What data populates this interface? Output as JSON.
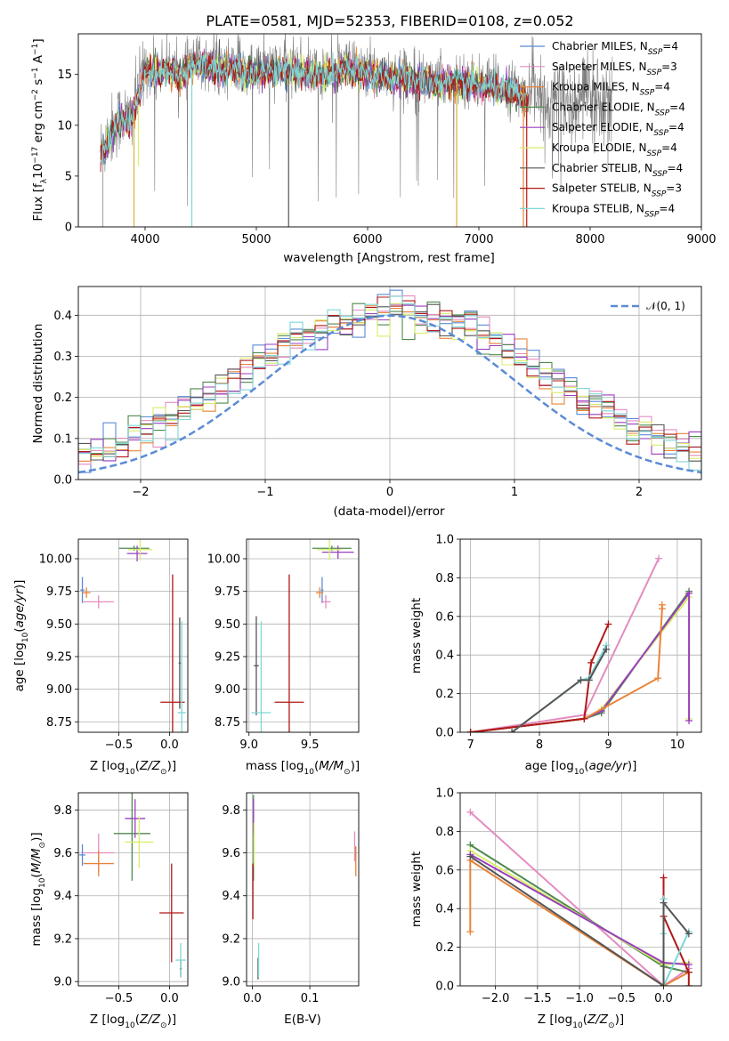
{
  "figure": {
    "title": "PLATE=0581, MJD=52353, FIBERID=0108, z=0.052",
    "colors": {
      "Chabrier MILES": "#5b8bd6",
      "Salpeter MILES": "#e38cc0",
      "Kroupa MILES": "#e8843a",
      "Chabrier ELODIE": "#4f8a4f",
      "Salpeter ELODIE": "#9a3fbf",
      "Kroupa ELODIE": "#d8ee6a",
      "Chabrier STELIB": "#555555",
      "Salpeter STELIB": "#b01818",
      "Kroupa STELIB": "#7fd6d6",
      "gaussian": "#5b8bd6",
      "data": "#808080"
    }
  },
  "chart_data": [
    {
      "id": "spectrum",
      "type": "line",
      "xlabel": "wavelength [Angstrom, rest frame]",
      "ylabel": "Flux [f",
      "xlim": [
        3400,
        9000
      ],
      "ylim": [
        0,
        19
      ],
      "xticks": [
        "4000",
        "5000",
        "6000",
        "7000",
        "8000",
        "9000"
      ],
      "yticks": [
        "0",
        "5",
        "10",
        "15"
      ],
      "legend_position": "upper right",
      "legend": [
        {
          "name": "Chabrier MILES",
          "nssp": "4"
        },
        {
          "name": "Salpeter MILES",
          "nssp": "3"
        },
        {
          "name": "Kroupa MILES",
          "nssp": "4"
        },
        {
          "name": "Chabrier ELODIE",
          "nssp": "4"
        },
        {
          "name": "Salpeter ELODIE",
          "nssp": "4"
        },
        {
          "name": "Kroupa ELODIE",
          "nssp": "4"
        },
        {
          "name": "Chabrier STELIB",
          "nssp": "4"
        },
        {
          "name": "Salpeter STELIB",
          "nssp": "3"
        },
        {
          "name": "Kroupa STELIB",
          "nssp": "4"
        }
      ],
      "data_anchor": {
        "x": [
          3600,
          3650,
          3700,
          3750,
          3800,
          3850,
          3900,
          3950,
          4000,
          4100,
          4200,
          4300,
          4400,
          4500,
          4600,
          4700,
          4800,
          4900,
          5000,
          5200,
          5400,
          5600,
          5800,
          6000,
          6200,
          6400,
          6600,
          6800,
          7000,
          7200,
          7300,
          7400,
          7450
        ],
        "y": [
          7.5,
          8.5,
          9.5,
          10.5,
          11.0,
          10.5,
          11.5,
          13.5,
          15.8,
          15.5,
          15.8,
          15.2,
          16.0,
          16.2,
          16.0,
          15.8,
          16.0,
          15.5,
          15.7,
          15.8,
          15.6,
          15.2,
          15.8,
          15.5,
          15.1,
          14.8,
          14.5,
          14.6,
          14.3,
          14.0,
          13.6,
          13.0,
          12.5
        ]
      }
    },
    {
      "id": "residuals",
      "type": "bar",
      "xlabel": "(data-model)/error",
      "ylabel": "Normed distribution",
      "xlim": [
        -2.5,
        2.5
      ],
      "ylim": [
        0,
        0.47
      ],
      "xticks": [
        "−2",
        "−1",
        "0",
        "1",
        "2"
      ],
      "yticks": [
        "0.0",
        "0.1",
        "0.2",
        "0.3",
        "0.4"
      ],
      "legend": [
        {
          "name": "𝒩(0, 1)"
        }
      ],
      "bin_width": 0.1
    },
    {
      "id": "age-vs-Z",
      "type": "scatter",
      "xlabel": "Z [log",
      "ylabel": "age [log",
      "xlim": [
        -0.9,
        0.18
      ],
      "ylim": [
        8.67,
        10.15
      ],
      "xticks": [
        "−0.5",
        "0.0"
      ],
      "yticks": [
        "8.75",
        "9.00",
        "9.25",
        "9.50",
        "9.75",
        "10.00"
      ],
      "points": [
        {
          "s": "Chabrier MILES",
          "x": -0.86,
          "y": 9.76,
          "ex": 0.02,
          "ey": 0.1
        },
        {
          "s": "Salpeter MILES",
          "x": -0.7,
          "y": 9.67,
          "ex": 0.15,
          "ey": 0.05
        },
        {
          "s": "Kroupa MILES",
          "x": -0.82,
          "y": 9.74,
          "ex": 0.04,
          "ey": 0.04
        },
        {
          "s": "Chabrier ELODIE",
          "x": -0.35,
          "y": 10.08,
          "ex": 0.15,
          "ey": 0.02
        },
        {
          "s": "Salpeter ELODIE",
          "x": -0.32,
          "y": 10.04,
          "ex": 0.1,
          "ey": 0.06
        },
        {
          "s": "Kroupa ELODIE",
          "x": -0.29,
          "y": 10.07,
          "ex": 0.12,
          "ey": 0.08
        },
        {
          "s": "Chabrier STELIB",
          "x": 0.1,
          "y": 9.2,
          "ex": 0.01,
          "ey": 0.35
        },
        {
          "s": "Salpeter STELIB",
          "x": 0.03,
          "y": 8.9,
          "ex": 0.12,
          "ey": 0.98
        },
        {
          "s": "Kroupa STELIB",
          "x": 0.12,
          "y": 8.82,
          "ex": 0.04,
          "ey": 0.7
        }
      ]
    },
    {
      "id": "age-vs-mass",
      "type": "scatter",
      "xlabel": "mass [log",
      "ylabel": "",
      "xlim": [
        8.98,
        9.9
      ],
      "ylim": [
        8.67,
        10.15
      ],
      "xticks": [
        "9.0",
        "9.5"
      ],
      "yticks": [
        "8.75",
        "9.00",
        "9.25",
        "9.50",
        "9.75",
        "10.00"
      ],
      "points": [
        {
          "s": "Chabrier MILES",
          "x": 9.6,
          "y": 9.76,
          "ex": 0.01,
          "ey": 0.1
        },
        {
          "s": "Salpeter MILES",
          "x": 9.63,
          "y": 9.67,
          "ex": 0.04,
          "ey": 0.05
        },
        {
          "s": "Kroupa MILES",
          "x": 9.58,
          "y": 9.74,
          "ex": 0.03,
          "ey": 0.04
        },
        {
          "s": "Chabrier ELODIE",
          "x": 9.68,
          "y": 10.08,
          "ex": 0.16,
          "ey": 0.02
        },
        {
          "s": "Salpeter ELODIE",
          "x": 9.73,
          "y": 10.05,
          "ex": 0.13,
          "ey": 0.05
        },
        {
          "s": "Kroupa ELODIE",
          "x": 9.66,
          "y": 10.07,
          "ex": 0.1,
          "ey": 0.08
        },
        {
          "s": "Chabrier STELIB",
          "x": 9.06,
          "y": 9.18,
          "ex": 0.02,
          "ey": 0.38
        },
        {
          "s": "Salpeter STELIB",
          "x": 9.33,
          "y": 8.9,
          "ex": 0.12,
          "ey": 0.98
        },
        {
          "s": "Kroupa STELIB",
          "x": 9.1,
          "y": 8.82,
          "ex": 0.08,
          "ey": 0.7
        }
      ]
    },
    {
      "id": "massweight-vs-age",
      "type": "line",
      "xlabel": "age [log",
      "ylabel": "mass weight",
      "xlim": [
        6.85,
        10.35
      ],
      "ylim": [
        0,
        1
      ],
      "xticks": [
        "7",
        "8",
        "9",
        "10"
      ],
      "yticks": [
        "0.0",
        "0.2",
        "0.4",
        "0.6",
        "0.8",
        "1.0"
      ],
      "series": [
        {
          "name": "Salpeter MILES",
          "x": [
            7.0,
            8.65,
            9.73
          ],
          "y": [
            0.0,
            0.09,
            0.9
          ]
        },
        {
          "name": "Chabrier ELODIE",
          "x": [
            7.0,
            8.65,
            8.9,
            10.17
          ],
          "y": [
            0.0,
            0.07,
            0.1,
            0.73
          ]
        },
        {
          "name": "Kroupa ELODIE",
          "x": [
            7.0,
            8.65,
            8.9,
            10.17,
            10.17
          ],
          "y": [
            0.0,
            0.07,
            0.12,
            0.7,
            0.07
          ]
        },
        {
          "name": "Salpeter ELODIE",
          "x": [
            7.0,
            8.65,
            8.9,
            10.17,
            10.17
          ],
          "y": [
            0.0,
            0.07,
            0.11,
            0.72,
            0.06
          ]
        },
        {
          "name": "Kroupa MILES",
          "x": [
            7.0,
            8.65,
            9.72,
            9.78,
            9.78
          ],
          "y": [
            0.0,
            0.07,
            0.28,
            0.64,
            0.66
          ]
        },
        {
          "name": "Salpeter STELIB",
          "x": [
            7.0,
            8.65,
            8.75,
            9.0
          ],
          "y": [
            0.0,
            0.07,
            0.36,
            0.56
          ]
        },
        {
          "name": "Kroupa STELIB",
          "x": [
            7.6,
            8.6,
            8.72,
            8.97
          ],
          "y": [
            0.0,
            0.27,
            0.28,
            0.45
          ]
        },
        {
          "name": "Chabrier STELIB",
          "x": [
            7.6,
            8.6,
            8.72,
            8.97
          ],
          "y": [
            0.0,
            0.27,
            0.27,
            0.43
          ]
        }
      ]
    },
    {
      "id": "mass-vs-Z",
      "type": "scatter",
      "xlabel": "Z [log",
      "ylabel": "mass [log",
      "xlim": [
        -0.9,
        0.18
      ],
      "ylim": [
        8.98,
        9.88
      ],
      "xticks": [
        "−0.5",
        "0.0"
      ],
      "yticks": [
        "9.0",
        "9.2",
        "9.4",
        "9.6",
        "9.8"
      ],
      "points": [
        {
          "s": "Chabrier MILES",
          "x": -0.86,
          "y": 9.59,
          "ex": 0.03,
          "ey": 0.05
        },
        {
          "s": "Salpeter MILES",
          "x": -0.7,
          "y": 9.6,
          "ex": 0.15,
          "ey": 0.09
        },
        {
          "s": "Kroupa MILES",
          "x": -0.7,
          "y": 9.55,
          "ex": 0.15,
          "ey": 0.06
        },
        {
          "s": "Chabrier ELODIE",
          "x": -0.37,
          "y": 9.69,
          "ex": 0.18,
          "ey": 0.22
        },
        {
          "s": "Salpeter ELODIE",
          "x": -0.34,
          "y": 9.76,
          "ex": 0.1,
          "ey": 0.09
        },
        {
          "s": "Kroupa ELODIE",
          "x": -0.3,
          "y": 9.65,
          "ex": 0.14,
          "ey": 0.12
        },
        {
          "s": "Chabrier STELIB",
          "x": 0.11,
          "y": 9.06,
          "ex": 0.01,
          "ey": 0.04
        },
        {
          "s": "Salpeter STELIB",
          "x": 0.02,
          "y": 9.32,
          "ex": 0.12,
          "ey": 0.23
        },
        {
          "s": "Kroupa STELIB",
          "x": 0.11,
          "y": 9.1,
          "ex": 0.05,
          "ey": 0.08
        }
      ]
    },
    {
      "id": "mass-vs-ebv",
      "type": "scatter",
      "xlabel": "E(B-V)",
      "ylabel": "",
      "xlim": [
        -0.01,
        0.185
      ],
      "ylim": [
        8.98,
        9.88
      ],
      "xticks": [
        "0.0",
        "0.1"
      ],
      "yticks": [
        "9.0",
        "9.2",
        "9.4",
        "9.6",
        "9.8"
      ],
      "points": [
        {
          "s": "Chabrier MILES",
          "x": 0.179,
          "y": 9.6,
          "ex": 0.0,
          "ey": 0.03
        },
        {
          "s": "Salpeter MILES",
          "x": 0.178,
          "y": 9.63,
          "ex": 0.0,
          "ey": 0.07
        },
        {
          "s": "Kroupa MILES",
          "x": 0.18,
          "y": 9.56,
          "ex": 0.0,
          "ey": 0.07
        },
        {
          "s": "Chabrier ELODIE",
          "x": 0.002,
          "y": 9.67,
          "ex": 0.0,
          "ey": 0.2
        },
        {
          "s": "Salpeter ELODIE",
          "x": 0.002,
          "y": 9.77,
          "ex": 0.0,
          "ey": 0.08
        },
        {
          "s": "Kroupa ELODIE",
          "x": 0.003,
          "y": 9.64,
          "ex": 0.0,
          "ey": 0.1
        },
        {
          "s": "Chabrier STELIB",
          "x": 0.01,
          "y": 9.06,
          "ex": 0.0,
          "ey": 0.05
        },
        {
          "s": "Salpeter STELIB",
          "x": 0.001,
          "y": 9.42,
          "ex": 0.0,
          "ey": 0.13
        },
        {
          "s": "Kroupa STELIB",
          "x": 0.011,
          "y": 9.1,
          "ex": 0.0,
          "ey": 0.08
        }
      ]
    },
    {
      "id": "massweight-vs-Z",
      "type": "line",
      "xlabel": "Z [log",
      "ylabel": "mass weight",
      "xlim": [
        -2.42,
        0.45
      ],
      "ylim": [
        0,
        1
      ],
      "xticks": [
        "−2.0",
        "−1.5",
        "−1.0",
        "−0.5",
        "0.0"
      ],
      "yticks": [
        "0.0",
        "0.2",
        "0.4",
        "0.6",
        "0.8",
        "1.0"
      ],
      "series": [
        {
          "name": "Salpeter MILES",
          "x": [
            -2.3,
            0.0,
            0.3
          ],
          "y": [
            0.9,
            0.0,
            0.09
          ]
        },
        {
          "name": "Chabrier ELODIE",
          "x": [
            -2.3,
            0.0,
            0.3
          ],
          "y": [
            0.73,
            0.1,
            0.07
          ]
        },
        {
          "name": "Kroupa ELODIE",
          "x": [
            -2.3,
            0.0,
            0.3
          ],
          "y": [
            0.7,
            0.11,
            0.12
          ]
        },
        {
          "name": "Salpeter ELODIE",
          "x": [
            -2.3,
            0.0,
            0.3
          ],
          "y": [
            0.68,
            0.12,
            0.11
          ]
        },
        {
          "name": "Kroupa MILES",
          "x": [
            -2.3,
            -2.3,
            0.0,
            0.3
          ],
          "y": [
            0.28,
            0.65,
            0.0,
            0.07
          ]
        },
        {
          "name": "Salpeter STELIB",
          "x": [
            0.0,
            0.0,
            0.3,
            0.3
          ],
          "y": [
            0.56,
            0.36,
            0.07,
            0.0
          ]
        },
        {
          "name": "Kroupa STELIB",
          "x": [
            0.0,
            0.0,
            0.0,
            0.3
          ],
          "y": [
            0.45,
            0.27,
            0.0,
            0.28
          ]
        },
        {
          "name": "Chabrier STELIB",
          "x": [
            -2.3,
            0.0,
            0.0,
            0.3
          ],
          "y": [
            0.67,
            0.0,
            0.43,
            0.27
          ]
        }
      ]
    }
  ]
}
